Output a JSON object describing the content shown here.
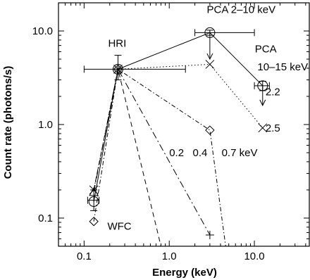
{
  "chart_data": {
    "type": "scatter",
    "title": "",
    "xlabel": "Energy (keV)",
    "ylabel": "Count rate (photons/s)",
    "xscale": "log",
    "yscale": "log",
    "xlim": [
      0.05,
      45
    ],
    "ylim": [
      0.05,
      20
    ],
    "grid": false,
    "xticks": [
      {
        "value": 0.1,
        "label": "0.1"
      },
      {
        "value": 1.0,
        "label": "1.0"
      },
      {
        "value": 10.0,
        "label": "10.0"
      }
    ],
    "yticks": [
      {
        "value": 0.1,
        "label": "0.1"
      },
      {
        "value": 1.0,
        "label": "1.0"
      },
      {
        "value": 10.0,
        "label": "10.0"
      }
    ],
    "annotations": [
      {
        "text": "PCA 2–10 keV",
        "x": 7.0,
        "y": 15.5
      },
      {
        "text": "PCA",
        "x": 13.6,
        "y": 5.9
      },
      {
        "text": "10–15 keV",
        "x": 21.5,
        "y": 3.8
      },
      {
        "text": "HRI",
        "x": 0.245,
        "y": 6.8
      },
      {
        "text": "2.2",
        "x": 16.5,
        "y": 2.05
      },
      {
        "text": "2.5",
        "x": 16.5,
        "y": 0.84
      },
      {
        "text": "0.2",
        "x": 1.22,
        "y": 0.46
      },
      {
        "text": "0.4",
        "x": 2.3,
        "y": 0.46
      },
      {
        "text": "0.7 keV",
        "x": 6.7,
        "y": 0.46
      },
      {
        "text": "WFC",
        "x": 0.26,
        "y": 0.075
      }
    ],
    "series": [
      {
        "label": "2.2",
        "style": "solid",
        "points": [
          {
            "x": 0.13,
            "y": 0.15,
            "marker": "circle"
          },
          {
            "x": 0.25,
            "y": 3.9,
            "marker": "circle"
          },
          {
            "x": 3.0,
            "y": 9.6,
            "marker": "circle"
          },
          {
            "x": 12.5,
            "y": 2.6,
            "marker": "circle"
          }
        ]
      },
      {
        "label": "2.5",
        "style": "dotted",
        "points": [
          {
            "x": 0.13,
            "y": 0.2,
            "marker": "cross"
          },
          {
            "x": 0.25,
            "y": 3.9,
            "marker": "cross"
          },
          {
            "x": 3.0,
            "y": 4.4,
            "marker": "cross"
          },
          {
            "x": 12.5,
            "y": 0.92,
            "marker": "cross"
          }
        ]
      },
      {
        "label": "0.7 keV",
        "style": "dashdot",
        "points": [
          {
            "x": 0.13,
            "y": 0.092,
            "marker": "diamond"
          },
          {
            "x": 0.25,
            "y": 3.9,
            "marker": "diamond"
          },
          {
            "x": 3.0,
            "y": 0.87,
            "marker": "diamond"
          },
          {
            "x": 4.6,
            "y": 0.05,
            "marker": "none"
          }
        ]
      },
      {
        "label": "0.4",
        "style": "longdashdot",
        "points": [
          {
            "x": 0.13,
            "y": 0.19,
            "marker": "triangle"
          },
          {
            "x": 0.25,
            "y": 3.9,
            "marker": "plus"
          },
          {
            "x": 3.0,
            "y": 0.066,
            "marker": "plus"
          }
        ]
      },
      {
        "label": "0.2",
        "style": "dashed",
        "points": [
          {
            "x": 0.13,
            "y": 0.2,
            "marker": "none"
          },
          {
            "x": 0.25,
            "y": 3.9,
            "marker": "none"
          },
          {
            "x": 0.8,
            "y": 0.05,
            "marker": "none"
          }
        ]
      }
    ],
    "error_bars": [
      {
        "x": 0.25,
        "y": 3.9,
        "xerr": [
          0.1,
          1.55
        ],
        "yerr": [
          3.0,
          5.5
        ]
      },
      {
        "x": 0.13,
        "y": 0.155,
        "xerr": [
          0.11,
          0.15
        ],
        "yerr": [
          0.12,
          0.2
        ]
      },
      {
        "x": 3.0,
        "y": 9.6,
        "xerr": [
          2.0,
          10.0
        ],
        "yerr": [
          9.0,
          10.2
        ]
      },
      {
        "x": 12.5,
        "y": 2.6,
        "xerr": [
          10.0,
          15.0
        ],
        "yerr": [
          2.3,
          2.9
        ]
      }
    ],
    "upper_limit_arrows": [
      {
        "x": 3.0,
        "y": 9.6,
        "y_to": 5.0
      },
      {
        "x": 12.5,
        "y": 2.6,
        "y_to": 1.6
      }
    ]
  }
}
